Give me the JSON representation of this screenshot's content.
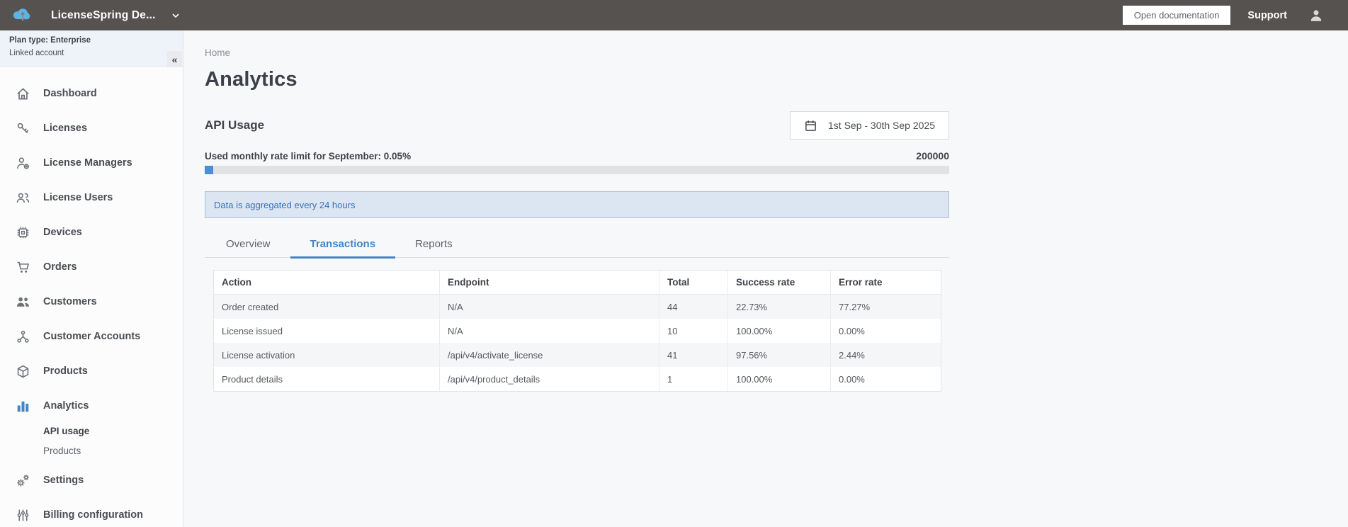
{
  "header": {
    "org_name": "LicenseSpring De...",
    "open_docs_label": "Open documentation",
    "support_label": "Support"
  },
  "sidebar": {
    "plan_type": "Plan type: Enterprise",
    "linked_account": "Linked account",
    "collapse_icon": "«",
    "items": [
      {
        "label": "Dashboard",
        "icon": "home-icon"
      },
      {
        "label": "Licenses",
        "icon": "key-icon"
      },
      {
        "label": "License Managers",
        "icon": "license-manager-icon"
      },
      {
        "label": "License Users",
        "icon": "license-users-icon"
      },
      {
        "label": "Devices",
        "icon": "devices-icon"
      },
      {
        "label": "Orders",
        "icon": "cart-icon"
      },
      {
        "label": "Customers",
        "icon": "customers-icon"
      },
      {
        "label": "Customer Accounts",
        "icon": "customer-accounts-icon"
      },
      {
        "label": "Products",
        "icon": "products-icon"
      },
      {
        "label": "Analytics",
        "icon": "analytics-icon",
        "active": true,
        "children": [
          {
            "label": "API usage",
            "active": true
          },
          {
            "label": "Products",
            "active": false
          }
        ]
      },
      {
        "label": "Settings",
        "icon": "settings-icon"
      },
      {
        "label": "Billing configuration",
        "icon": "billing-icon"
      }
    ]
  },
  "main": {
    "breadcrumb": "Home",
    "page_title": "Analytics",
    "section_title": "API Usage",
    "date_range": "1st Sep - 30th Sep 2025",
    "usage_label": "Used monthly rate limit for September: 0.05%",
    "usage_percent": 0.05,
    "usage_limit": "200000",
    "info_banner": "Data is aggregated every 24 hours",
    "tabs": [
      {
        "label": "Overview",
        "active": false
      },
      {
        "label": "Transactions",
        "active": true
      },
      {
        "label": "Reports",
        "active": false
      }
    ],
    "table": {
      "columns": [
        "Action",
        "Endpoint",
        "Total",
        "Success rate",
        "Error rate"
      ],
      "rows": [
        [
          "Order created",
          "N/A",
          "44",
          "22.73%",
          "77.27%"
        ],
        [
          "License issued",
          "N/A",
          "10",
          "100.00%",
          "0.00%"
        ],
        [
          "License activation",
          "/api/v4/activate_license",
          "41",
          "97.56%",
          "2.44%"
        ],
        [
          "Product details",
          "/api/v4/product_details",
          "1",
          "100.00%",
          "0.00%"
        ]
      ]
    }
  },
  "colors": {
    "topbar_bg": "#565250",
    "logo_blue": "#5cb3e4",
    "accent_blue": "#4285c8",
    "progress_fill": "#4a8fd3",
    "banner_bg": "#dce6f3",
    "banner_text": "#3a6fb4"
  }
}
